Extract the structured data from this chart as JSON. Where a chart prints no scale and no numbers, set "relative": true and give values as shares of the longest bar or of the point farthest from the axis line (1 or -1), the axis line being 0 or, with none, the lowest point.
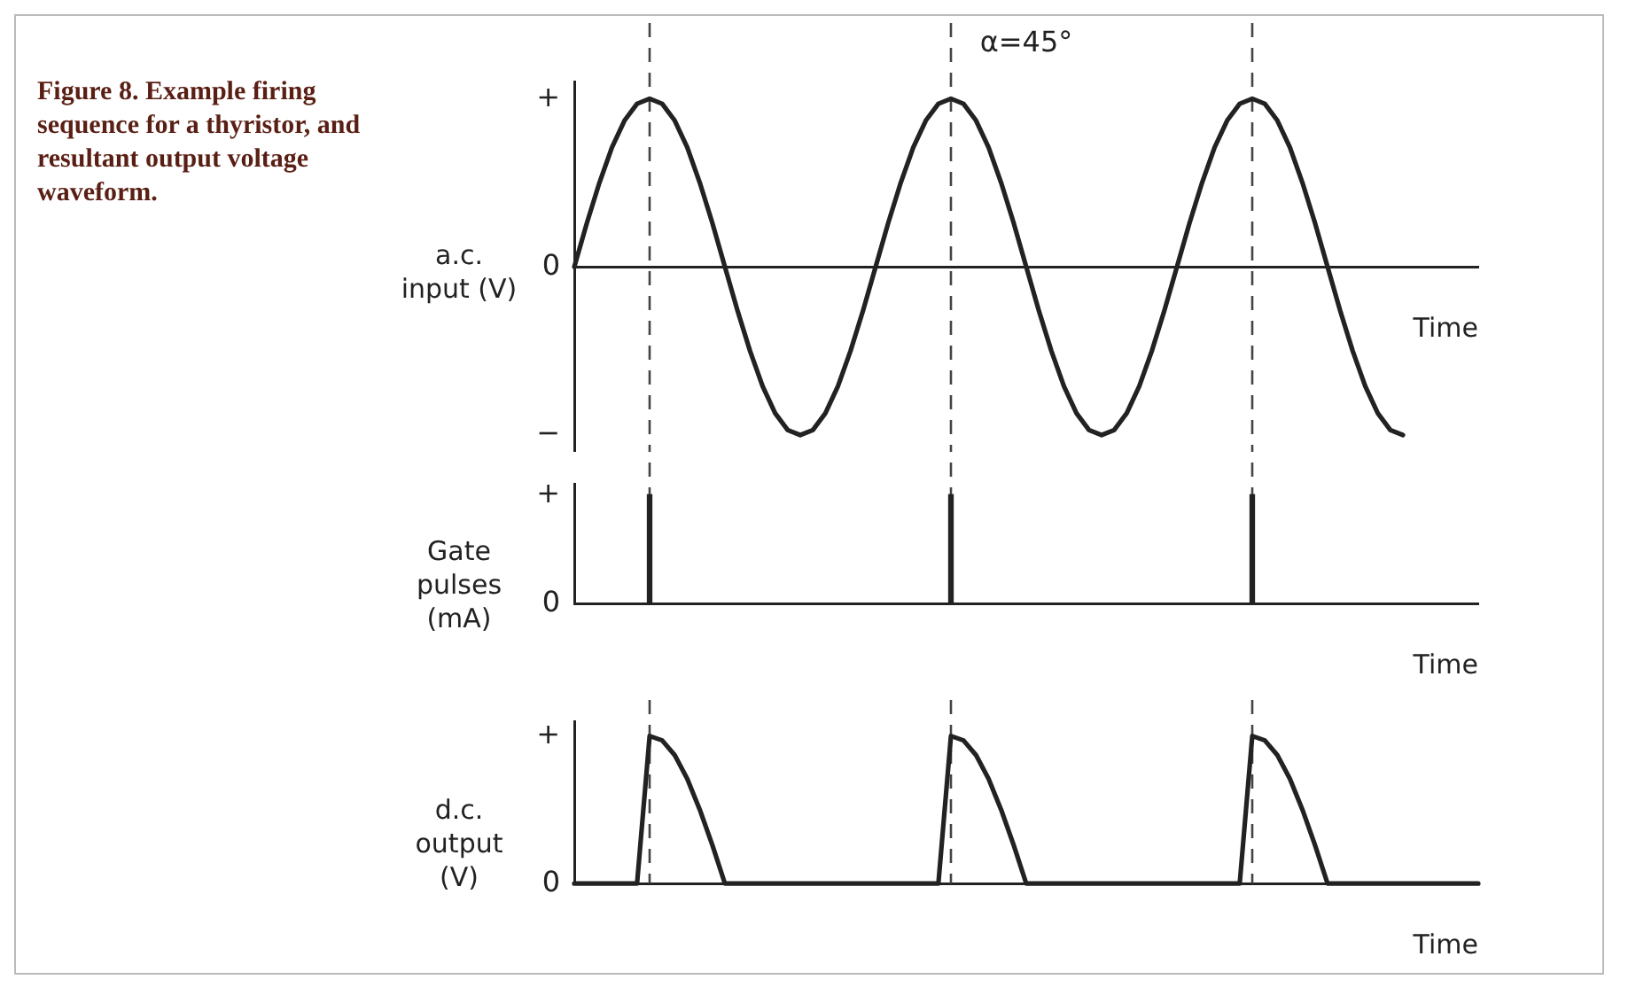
{
  "chart_data": [
    {
      "type": "line",
      "title": "α=45°",
      "annotations": [
        "Figure 8. Example firing sequence for a thyristor, and resultant output voltage waveform.",
        "+",
        "0",
        "−"
      ],
      "ylabel": "a.c. input (V)",
      "grid": "x",
      "xlabel": "Time",
      "relative": true,
      "marker": "none",
      "line_style": "solid",
      "categories": [
        null,
        null,
        null,
        null,
        null,
        null,
        null,
        null,
        null,
        null,
        null,
        null,
        null,
        null,
        null,
        null,
        null,
        null,
        null,
        null,
        null,
        null,
        null,
        null,
        null,
        null,
        null,
        null,
        null,
        null,
        null,
        null,
        null,
        null,
        null,
        null,
        null,
        null,
        null,
        null,
        null,
        null,
        null,
        null,
        null,
        null,
        null,
        null,
        null,
        null,
        null,
        null,
        null,
        null,
        null,
        null,
        null,
        null,
        null,
        null,
        null,
        null,
        null,
        null,
        null,
        null,
        null,
        null,
        null,
        null,
        null,
        null,
        null
      ],
      "series": [
        {
          "color": "#222222",
          "values": [
            0,
            0.26,
            0.5,
            0.71,
            0.87,
            0.97,
            1,
            0.97,
            0.87,
            0.71,
            0.5,
            0.26,
            0,
            -0.26,
            -0.5,
            -0.71,
            -0.87,
            -0.97,
            -1,
            -0.97,
            -0.87,
            -0.71,
            -0.5,
            -0.26,
            0,
            0.26,
            0.5,
            0.71,
            0.87,
            0.97,
            1,
            0.97,
            0.87,
            0.71,
            0.5,
            0.26,
            0,
            -0.26,
            -0.5,
            -0.71,
            -0.87,
            -0.97,
            -1,
            -0.97,
            -0.87,
            -0.71,
            -0.5,
            -0.26,
            0,
            0.26,
            0.5,
            0.71,
            0.87,
            0.97,
            1,
            0.97,
            0.87,
            0.71,
            0.5,
            0.26,
            0,
            -0.26,
            -0.5,
            -0.71,
            -0.87,
            -0.97,
            -1,
            null,
            null,
            null,
            null,
            null,
            null
          ]
        }
      ]
    },
    {
      "type": "bar",
      "ylabel": "Gate pulses (mA)",
      "grid": "x",
      "xlabel": "Time",
      "relative": true,
      "annotations": [
        "+",
        "0"
      ],
      "categories": [
        null,
        null,
        null,
        null,
        null,
        null,
        null,
        null,
        null,
        null,
        null,
        null,
        null,
        null,
        null,
        null,
        null,
        null,
        null,
        null,
        null,
        null,
        null,
        null,
        null,
        null,
        null,
        null,
        null,
        null,
        null,
        null,
        null,
        null,
        null,
        null,
        null,
        null,
        null,
        null,
        null,
        null,
        null,
        null,
        null,
        null,
        null,
        null,
        null,
        null,
        null,
        null,
        null,
        null,
        null,
        null,
        null,
        null,
        null,
        null,
        null,
        null,
        null,
        null,
        null,
        null,
        null,
        null,
        null,
        null,
        null,
        null,
        null
      ],
      "series": [
        {
          "color": "#222222",
          "values": [
            null,
            null,
            null,
            null,
            null,
            null,
            1,
            null,
            null,
            null,
            null,
            null,
            null,
            null,
            null,
            null,
            null,
            null,
            null,
            null,
            null,
            null,
            null,
            null,
            null,
            null,
            null,
            null,
            null,
            null,
            1,
            null,
            null,
            null,
            null,
            null,
            null,
            null,
            null,
            null,
            null,
            null,
            null,
            null,
            null,
            null,
            null,
            null,
            null,
            null,
            null,
            null,
            null,
            null,
            1,
            null,
            null,
            null,
            null,
            null,
            null,
            null,
            null,
            null,
            null,
            null,
            null,
            null,
            null,
            null,
            null,
            null,
            null
          ]
        }
      ]
    },
    {
      "type": "line",
      "ylabel": "d.c. output (V)",
      "grid": "x",
      "xlabel": "Time",
      "relative": true,
      "annotations": [
        "+",
        "0"
      ],
      "marker": "none",
      "line_style": "solid",
      "categories": [
        null,
        null,
        null,
        null,
        null,
        null,
        null,
        null,
        null,
        null,
        null,
        null,
        null,
        null,
        null,
        null,
        null,
        null,
        null,
        null,
        null,
        null,
        null,
        null,
        null,
        null,
        null,
        null,
        null,
        null,
        null,
        null,
        null,
        null,
        null,
        null,
        null,
        null,
        null,
        null,
        null,
        null,
        null,
        null,
        null,
        null,
        null,
        null,
        null,
        null,
        null,
        null,
        null,
        null,
        null,
        null,
        null,
        null,
        null,
        null,
        null,
        null,
        null,
        null,
        null,
        null,
        null,
        null,
        null,
        null,
        null,
        null,
        null
      ],
      "series": [
        {
          "color": "#222222",
          "values": [
            0,
            0,
            0,
            0,
            0,
            0,
            1,
            0.97,
            0.87,
            0.71,
            0.5,
            0.26,
            0,
            0,
            0,
            0,
            0,
            0,
            0,
            0,
            0,
            0,
            0,
            0,
            0,
            0,
            0,
            0,
            0,
            0,
            1,
            0.97,
            0.87,
            0.71,
            0.5,
            0.26,
            0,
            0,
            0,
            0,
            0,
            0,
            0,
            0,
            0,
            0,
            0,
            0,
            0,
            0,
            0,
            0,
            0,
            0,
            1,
            0.97,
            0.87,
            0.71,
            0.5,
            0.26,
            0,
            0,
            0,
            0,
            0,
            0,
            0,
            0,
            0,
            0,
            0,
            0,
            0
          ]
        }
      ]
    }
  ]
}
